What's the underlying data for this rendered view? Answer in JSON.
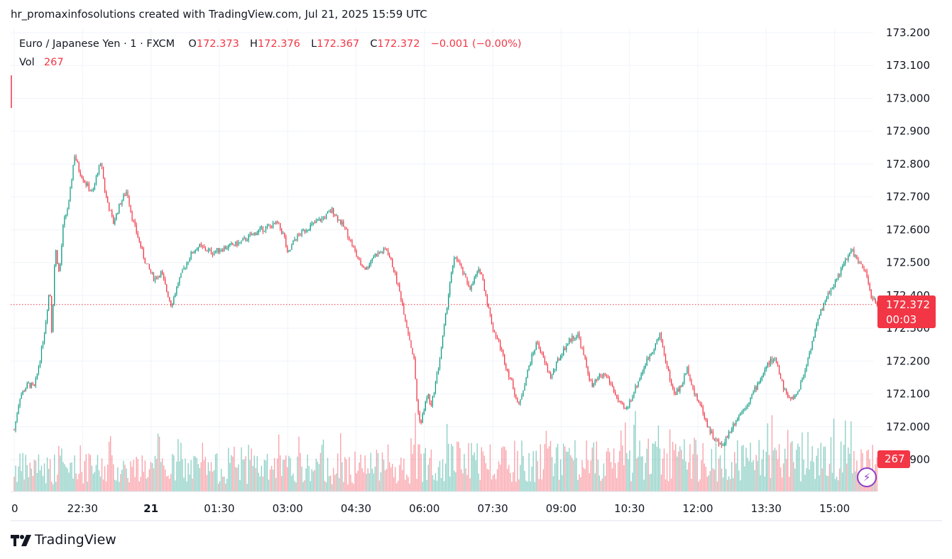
{
  "header": {
    "title": "hr_promaxinfosolutions created with TradingView.com, Jul 21, 2025 15:59 UTC"
  },
  "legend": {
    "symbol": "Euro / Japanese Yen · 1 · FXCM",
    "open_label": "O",
    "open": "172.373",
    "high_label": "H",
    "high": "172.376",
    "low_label": "L",
    "low": "172.367",
    "close_label": "C",
    "close": "172.372",
    "change": "−0.001 (−0.00%)",
    "vol_label": "Vol",
    "vol": "267"
  },
  "price_marker": {
    "price": "172.372",
    "countdown": "00:03"
  },
  "volume_marker": {
    "value": "267"
  },
  "brand": {
    "name": "TradingView"
  },
  "colors": {
    "up": "#089981",
    "down": "#f23645",
    "grid": "#f0f3fa"
  },
  "chart_data": {
    "type": "candlestick",
    "symbol": "EUR/JPY",
    "interval": "1 minute",
    "y_ticks": [
      "173.200",
      "173.100",
      "173.000",
      "172.900",
      "172.800",
      "172.700",
      "172.600",
      "172.500",
      "172.400",
      "172.300",
      "172.200",
      "172.100",
      "172.000",
      "171.900"
    ],
    "ylim": [
      171.86,
      173.21
    ],
    "x_ticks": [
      "0",
      "22:30",
      "21",
      "01:30",
      "03:00",
      "04:30",
      "06:00",
      "07:30",
      "09:00",
      "10:30",
      "12:00",
      "13:30",
      "15:00"
    ],
    "x_tick_units": [
      0,
      1,
      2,
      3,
      4,
      5,
      6,
      7,
      8,
      9,
      10,
      11,
      12
    ],
    "last_price": 172.372,
    "price_path": [
      [
        0.0,
        171.99
      ],
      [
        0.08,
        172.09
      ],
      [
        0.2,
        172.13
      ],
      [
        0.3,
        172.12
      ],
      [
        0.38,
        172.21
      ],
      [
        0.45,
        172.3
      ],
      [
        0.52,
        172.43
      ],
      [
        0.55,
        172.28
      ],
      [
        0.6,
        172.55
      ],
      [
        0.66,
        172.46
      ],
      [
        0.72,
        172.62
      ],
      [
        0.8,
        172.68
      ],
      [
        0.88,
        172.83
      ],
      [
        0.95,
        172.78
      ],
      [
        1.05,
        172.74
      ],
      [
        1.15,
        172.71
      ],
      [
        1.22,
        172.78
      ],
      [
        1.28,
        172.8
      ],
      [
        1.33,
        172.71
      ],
      [
        1.45,
        172.62
      ],
      [
        1.55,
        172.68
      ],
      [
        1.65,
        172.72
      ],
      [
        1.72,
        172.64
      ],
      [
        1.82,
        172.57
      ],
      [
        1.92,
        172.5
      ],
      [
        2.05,
        172.45
      ],
      [
        2.15,
        172.47
      ],
      [
        2.22,
        172.42
      ],
      [
        2.3,
        172.37
      ],
      [
        2.4,
        172.44
      ],
      [
        2.5,
        172.49
      ],
      [
        2.6,
        172.53
      ],
      [
        2.7,
        172.55
      ],
      [
        2.8,
        172.54
      ],
      [
        2.9,
        172.53
      ],
      [
        3.0,
        172.54
      ],
      [
        3.15,
        172.55
      ],
      [
        3.3,
        172.56
      ],
      [
        3.45,
        172.58
      ],
      [
        3.6,
        172.6
      ],
      [
        3.75,
        172.61
      ],
      [
        3.85,
        172.62
      ],
      [
        3.95,
        172.58
      ],
      [
        4.0,
        172.52
      ],
      [
        4.1,
        172.57
      ],
      [
        4.25,
        172.6
      ],
      [
        4.4,
        172.62
      ],
      [
        4.55,
        172.64
      ],
      [
        4.65,
        172.66
      ],
      [
        4.75,
        172.63
      ],
      [
        4.85,
        172.6
      ],
      [
        4.95,
        172.55
      ],
      [
        5.05,
        172.5
      ],
      [
        5.15,
        172.48
      ],
      [
        5.25,
        172.52
      ],
      [
        5.35,
        172.53
      ],
      [
        5.45,
        172.54
      ],
      [
        5.55,
        172.48
      ],
      [
        5.65,
        172.4
      ],
      [
        5.75,
        172.3
      ],
      [
        5.85,
        172.2
      ],
      [
        5.9,
        172.05
      ],
      [
        5.95,
        172.01
      ],
      [
        6.0,
        172.06
      ],
      [
        6.05,
        172.1
      ],
      [
        6.1,
        172.06
      ],
      [
        6.15,
        172.12
      ],
      [
        6.22,
        172.2
      ],
      [
        6.3,
        172.32
      ],
      [
        6.38,
        172.45
      ],
      [
        6.45,
        172.52
      ],
      [
        6.5,
        172.5
      ],
      [
        6.6,
        172.45
      ],
      [
        6.68,
        172.42
      ],
      [
        6.75,
        172.46
      ],
      [
        6.82,
        172.48
      ],
      [
        6.9,
        172.4
      ],
      [
        7.0,
        172.3
      ],
      [
        7.1,
        172.25
      ],
      [
        7.2,
        172.18
      ],
      [
        7.3,
        172.12
      ],
      [
        7.38,
        172.06
      ],
      [
        7.45,
        172.12
      ],
      [
        7.55,
        172.2
      ],
      [
        7.65,
        172.26
      ],
      [
        7.75,
        172.2
      ],
      [
        7.85,
        172.15
      ],
      [
        7.95,
        172.2
      ],
      [
        8.05,
        172.24
      ],
      [
        8.15,
        172.27
      ],
      [
        8.25,
        172.28
      ],
      [
        8.35,
        172.2
      ],
      [
        8.45,
        172.12
      ],
      [
        8.55,
        172.15
      ],
      [
        8.65,
        172.16
      ],
      [
        8.75,
        172.12
      ],
      [
        8.85,
        172.07
      ],
      [
        8.95,
        172.05
      ],
      [
        9.05,
        172.1
      ],
      [
        9.15,
        172.15
      ],
      [
        9.25,
        172.2
      ],
      [
        9.35,
        172.24
      ],
      [
        9.45,
        172.28
      ],
      [
        9.55,
        172.18
      ],
      [
        9.65,
        172.1
      ],
      [
        9.75,
        172.12
      ],
      [
        9.85,
        172.18
      ],
      [
        9.95,
        172.1
      ],
      [
        10.05,
        172.06
      ],
      [
        10.15,
        172.0
      ],
      [
        10.25,
        171.96
      ],
      [
        10.35,
        171.94
      ],
      [
        10.45,
        171.98
      ],
      [
        10.55,
        172.02
      ],
      [
        10.65,
        172.05
      ],
      [
        10.75,
        172.08
      ],
      [
        10.85,
        172.12
      ],
      [
        10.95,
        172.16
      ],
      [
        11.05,
        172.2
      ],
      [
        11.15,
        172.2
      ],
      [
        11.25,
        172.12
      ],
      [
        11.35,
        172.08
      ],
      [
        11.45,
        172.1
      ],
      [
        11.55,
        172.16
      ],
      [
        11.65,
        172.24
      ],
      [
        11.75,
        172.32
      ],
      [
        11.85,
        172.38
      ],
      [
        11.95,
        172.42
      ],
      [
        12.05,
        172.46
      ],
      [
        12.15,
        172.5
      ],
      [
        12.25,
        172.54
      ],
      [
        12.35,
        172.5
      ],
      [
        12.45,
        172.47
      ],
      [
        12.55,
        172.39
      ],
      [
        12.62,
        172.372
      ]
    ],
    "volume_scale": "relative bars below price, last bar 267"
  }
}
